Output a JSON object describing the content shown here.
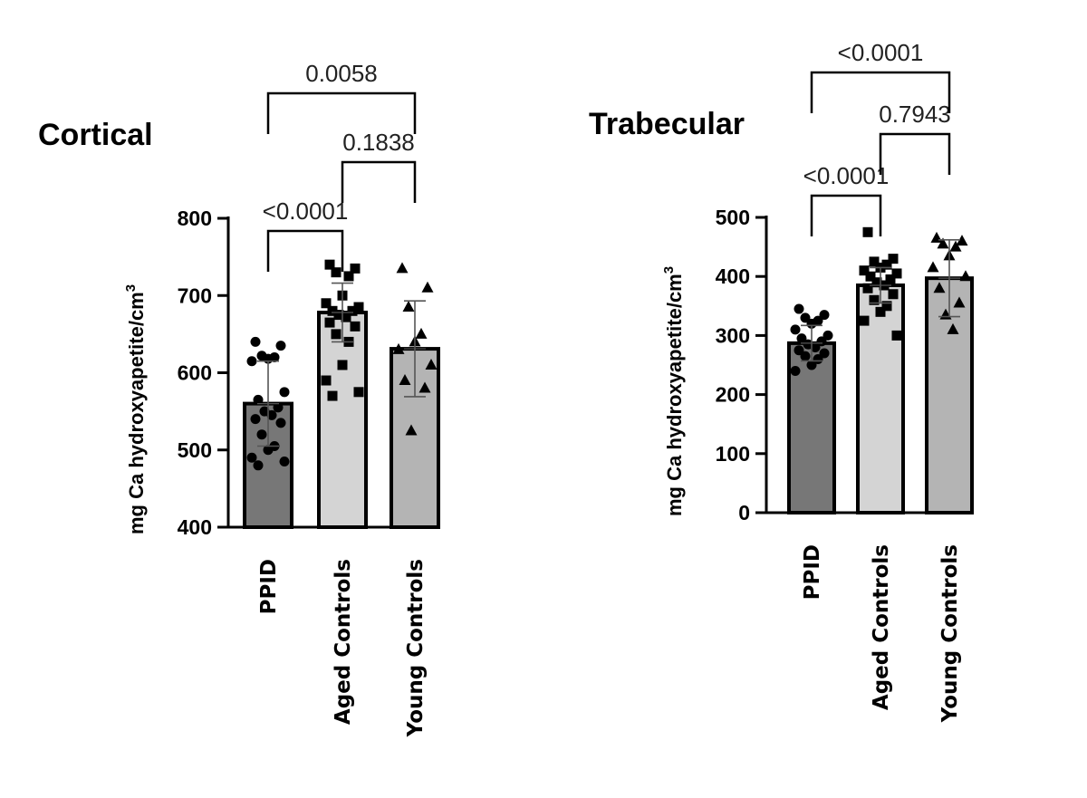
{
  "chart_data": [
    {
      "type": "bar",
      "title": "Cortical",
      "ylabel": "mg Ca hydroxyapetite/cm",
      "ylabel_superscript": "3",
      "ylim": [
        400,
        800
      ],
      "yticks": [
        "400",
        "500",
        "600",
        "700",
        "800"
      ],
      "categories": [
        "PPID",
        "Aged Controls",
        "Young Controls"
      ],
      "values": [
        560,
        678,
        631
      ],
      "sd": [
        55,
        38,
        62
      ],
      "bar_colors": [
        "#777777",
        "#d4d4d4",
        "#b4b4b4"
      ],
      "markers": [
        "circle",
        "square",
        "triangle"
      ],
      "points": [
        [
          640,
          635,
          622,
          620,
          618,
          615,
          575,
          565,
          555,
          550,
          545,
          540,
          535,
          520,
          505,
          500,
          490,
          485,
          480
        ],
        [
          740,
          735,
          730,
          725,
          700,
          690,
          685,
          680,
          680,
          675,
          672,
          665,
          660,
          650,
          640,
          610,
          590,
          575,
          570
        ],
        [
          735,
          710,
          685,
          650,
          640,
          630,
          610,
          590,
          580,
          525
        ]
      ],
      "comparisons": [
        {
          "from": 0,
          "to": 1,
          "label": "<0.0001",
          "level": 0
        },
        {
          "from": 1,
          "to": 2,
          "label": "0.1838",
          "level": 1
        },
        {
          "from": 0,
          "to": 2,
          "label": "0.0058",
          "level": 2
        }
      ]
    },
    {
      "type": "bar",
      "title": "Trabecular",
      "ylabel": "mg Ca hydroxyapetite/cm",
      "ylabel_superscript": "3",
      "ylim": [
        0,
        500
      ],
      "yticks": [
        "0",
        "100",
        "200",
        "300",
        "400",
        "500"
      ],
      "categories": [
        "PPID",
        "Aged Controls",
        "Young Controls"
      ],
      "values": [
        287,
        385,
        397
      ],
      "sd": [
        30,
        30,
        65
      ],
      "bar_colors": [
        "#777777",
        "#d4d4d4",
        "#b4b4b4"
      ],
      "markers": [
        "circle",
        "square",
        "triangle"
      ],
      "points": [
        [
          345,
          335,
          330,
          325,
          320,
          310,
          300,
          295,
          290,
          285,
          280,
          275,
          270,
          265,
          260,
          250,
          240
        ],
        [
          475,
          430,
          425,
          420,
          415,
          410,
          405,
          400,
          395,
          390,
          385,
          380,
          370,
          360,
          350,
          340,
          325,
          300
        ],
        [
          465,
          460,
          455,
          450,
          435,
          415,
          400,
          380,
          355,
          335,
          310
        ]
      ],
      "comparisons": [
        {
          "from": 0,
          "to": 1,
          "label": "<0.0001",
          "level": 0
        },
        {
          "from": 1,
          "to": 2,
          "label": "0.7943",
          "level": 1
        },
        {
          "from": 0,
          "to": 2,
          "label": "<0.0001",
          "level": 2
        }
      ]
    }
  ]
}
